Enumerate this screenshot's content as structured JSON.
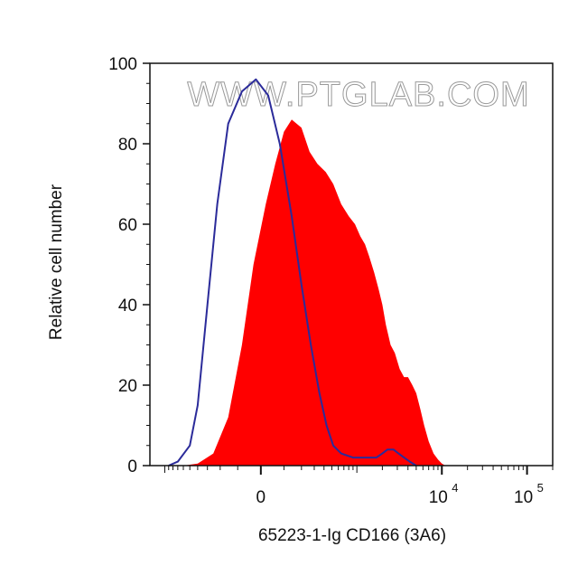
{
  "chart_data": {
    "type": "area",
    "watermark": "WWW.PTGLAB.COM",
    "xlabel": "65223-1-Ig CD166 (3A6)",
    "ylabel": "Relative cell number",
    "ylim": [
      0,
      100
    ],
    "yticks": [
      {
        "value": 0,
        "label": "0"
      },
      {
        "value": 20,
        "label": "20"
      },
      {
        "value": 40,
        "label": "40"
      },
      {
        "value": 60,
        "label": "60"
      },
      {
        "value": 80,
        "label": "80"
      },
      {
        "value": 100,
        "label": "100"
      }
    ],
    "xscale": "biexponential",
    "xticks": [
      {
        "value": 0,
        "label": "0",
        "exponent": ""
      },
      {
        "value": 10000,
        "label": "10",
        "exponent": "4"
      },
      {
        "value": 100000,
        "label": "10",
        "exponent": "5"
      }
    ],
    "grid": false,
    "colors": {
      "sample_fill": "#ff0000",
      "control_line": "#2b2b9a",
      "axis": "#111111"
    },
    "series": [
      {
        "style": "filled",
        "color": "#ff0000",
        "points": [
          [
            -600,
            0
          ],
          [
            -400,
            0.5
          ],
          [
            -250,
            3
          ],
          [
            -150,
            12
          ],
          [
            -80,
            30
          ],
          [
            -30,
            50
          ],
          [
            20,
            65
          ],
          [
            60,
            75
          ],
          [
            100,
            83
          ],
          [
            140,
            86
          ],
          [
            200,
            84
          ],
          [
            260,
            78
          ],
          [
            330,
            75
          ],
          [
            420,
            73
          ],
          [
            520,
            70
          ],
          [
            650,
            65
          ],
          [
            800,
            62
          ],
          [
            950,
            60
          ],
          [
            1100,
            57
          ],
          [
            1250,
            55
          ],
          [
            1400,
            52
          ],
          [
            1600,
            48
          ],
          [
            1800,
            44
          ],
          [
            2000,
            40
          ],
          [
            2200,
            35
          ],
          [
            2500,
            30
          ],
          [
            2800,
            28
          ],
          [
            3200,
            24
          ],
          [
            3600,
            22
          ],
          [
            4000,
            22
          ],
          [
            4500,
            20
          ],
          [
            5000,
            18
          ],
          [
            5600,
            14
          ],
          [
            6200,
            10
          ],
          [
            7000,
            6
          ],
          [
            8000,
            3
          ],
          [
            9000,
            1.5
          ],
          [
            10000,
            0.5
          ],
          [
            11000,
            0
          ]
        ]
      },
      {
        "style": "line",
        "color": "#2b2b9a",
        "points": [
          [
            -900,
            0
          ],
          [
            -700,
            1
          ],
          [
            -500,
            5
          ],
          [
            -400,
            15
          ],
          [
            -300,
            40
          ],
          [
            -220,
            65
          ],
          [
            -150,
            85
          ],
          [
            -80,
            93
          ],
          [
            -20,
            96
          ],
          [
            30,
            92
          ],
          [
            80,
            80
          ],
          [
            140,
            62
          ],
          [
            200,
            45
          ],
          [
            270,
            30
          ],
          [
            350,
            18
          ],
          [
            430,
            10
          ],
          [
            520,
            5
          ],
          [
            650,
            3
          ],
          [
            900,
            2
          ],
          [
            1300,
            2
          ],
          [
            1700,
            2
          ],
          [
            2000,
            3
          ],
          [
            2300,
            4
          ],
          [
            2700,
            4
          ],
          [
            3100,
            3
          ],
          [
            3600,
            2
          ],
          [
            4200,
            1
          ],
          [
            5000,
            0
          ]
        ]
      }
    ]
  }
}
